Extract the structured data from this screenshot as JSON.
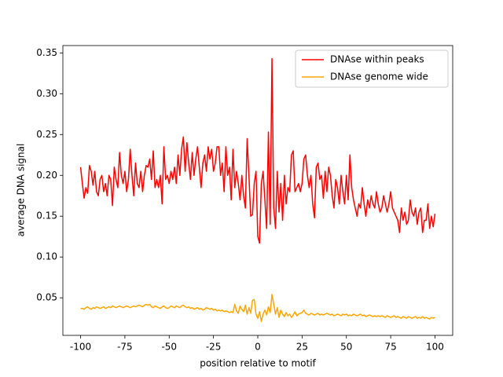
{
  "chart_data": {
    "type": "line",
    "xlabel": "position relative to motif",
    "ylabel": "average DNA signal",
    "xlim": [
      -110,
      110
    ],
    "xticks": [
      -100,
      -75,
      -50,
      -25,
      0,
      25,
      50,
      75,
      100
    ],
    "ylim": [
      0.004,
      0.359
    ],
    "yticks": [
      0.05,
      {
        "value": 0.1,
        "label": "0.10"
      },
      0.15,
      {
        "value": 0.2,
        "label": "0.20"
      },
      0.25,
      {
        "value": 0.3,
        "label": "0.30"
      },
      0.35
    ],
    "legend": "upper right",
    "x": [
      -100,
      -99,
      -98,
      -97,
      -96,
      -95,
      -94,
      -93,
      -92,
      -91,
      -90,
      -89,
      -88,
      -87,
      -86,
      -85,
      -84,
      -83,
      -82,
      -81,
      -80,
      -79,
      -78,
      -77,
      -76,
      -75,
      -74,
      -73,
      -72,
      -71,
      -70,
      -69,
      -68,
      -67,
      -66,
      -65,
      -64,
      -63,
      -62,
      -61,
      -60,
      -59,
      -58,
      -57,
      -56,
      -55,
      -54,
      -53,
      -52,
      -51,
      -50,
      -49,
      -48,
      -47,
      -46,
      -45,
      -44,
      -43,
      -42,
      -41,
      -40,
      -39,
      -38,
      -37,
      -36,
      -35,
      -34,
      -33,
      -32,
      -31,
      -30,
      -29,
      -28,
      -27,
      -26,
      -25,
      -24,
      -23,
      -22,
      -21,
      -20,
      -19,
      -18,
      -17,
      -16,
      -15,
      -14,
      -13,
      -12,
      -11,
      -10,
      -9,
      -8,
      -7,
      -6,
      -5,
      -4,
      -3,
      -2,
      -1,
      0,
      1,
      2,
      3,
      4,
      5,
      6,
      7,
      8,
      9,
      10,
      11,
      12,
      13,
      14,
      15,
      16,
      17,
      18,
      19,
      20,
      21,
      22,
      23,
      24,
      25,
      26,
      27,
      28,
      29,
      30,
      31,
      32,
      33,
      34,
      35,
      36,
      37,
      38,
      39,
      40,
      41,
      42,
      43,
      44,
      45,
      46,
      47,
      48,
      49,
      50,
      51,
      52,
      53,
      54,
      55,
      56,
      57,
      58,
      59,
      60,
      61,
      62,
      63,
      64,
      65,
      66,
      67,
      68,
      69,
      70,
      71,
      72,
      73,
      74,
      75,
      76,
      77,
      78,
      79,
      80,
      81,
      82,
      83,
      84,
      85,
      86,
      87,
      88,
      89,
      90,
      91,
      92,
      93,
      94,
      95,
      96,
      97,
      98,
      99,
      100
    ],
    "series": [
      {
        "name": "DNAse within peaks",
        "color": "#ff0000",
        "values": [
          0.21,
          0.19,
          0.172,
          0.185,
          0.178,
          0.212,
          0.205,
          0.188,
          0.205,
          0.18,
          0.175,
          0.195,
          0.2,
          0.18,
          0.19,
          0.175,
          0.2,
          0.195,
          0.163,
          0.21,
          0.195,
          0.185,
          0.228,
          0.2,
          0.19,
          0.205,
          0.18,
          0.195,
          0.232,
          0.2,
          0.175,
          0.215,
          0.19,
          0.185,
          0.205,
          0.18,
          0.2,
          0.212,
          0.21,
          0.22,
          0.195,
          0.23,
          0.185,
          0.195,
          0.185,
          0.2,
          0.165,
          0.235,
          0.195,
          0.2,
          0.19,
          0.205,
          0.195,
          0.21,
          0.19,
          0.225,
          0.2,
          0.232,
          0.247,
          0.205,
          0.24,
          0.215,
          0.195,
          0.228,
          0.2,
          0.22,
          0.235,
          0.21,
          0.185,
          0.215,
          0.225,
          0.205,
          0.235,
          0.22,
          0.232,
          0.205,
          0.215,
          0.235,
          0.235,
          0.2,
          0.215,
          0.18,
          0.235,
          0.2,
          0.21,
          0.17,
          0.232,
          0.185,
          0.205,
          0.19,
          0.17,
          0.2,
          0.175,
          0.16,
          0.245,
          0.2,
          0.15,
          0.152,
          0.19,
          0.205,
          0.125,
          0.117,
          0.19,
          0.205,
          0.17,
          0.135,
          0.253,
          0.14,
          0.343,
          0.16,
          0.135,
          0.205,
          0.155,
          0.19,
          0.145,
          0.2,
          0.165,
          0.185,
          0.18,
          0.225,
          0.23,
          0.18,
          0.185,
          0.19,
          0.18,
          0.19,
          0.22,
          0.225,
          0.2,
          0.185,
          0.2,
          0.165,
          0.148,
          0.21,
          0.215,
          0.195,
          0.2,
          0.172,
          0.205,
          0.18,
          0.21,
          0.2,
          0.175,
          0.16,
          0.195,
          0.185,
          0.165,
          0.2,
          0.18,
          0.165,
          0.2,
          0.17,
          0.225,
          0.185,
          0.17,
          0.16,
          0.15,
          0.165,
          0.16,
          0.185,
          0.165,
          0.15,
          0.17,
          0.16,
          0.175,
          0.165,
          0.16,
          0.18,
          0.165,
          0.155,
          0.16,
          0.175,
          0.165,
          0.155,
          0.165,
          0.18,
          0.16,
          0.155,
          0.15,
          0.145,
          0.13,
          0.16,
          0.145,
          0.155,
          0.14,
          0.145,
          0.17,
          0.155,
          0.15,
          0.16,
          0.14,
          0.155,
          0.16,
          0.13,
          0.145,
          0.145,
          0.165,
          0.135,
          0.15,
          0.137,
          0.153
        ]
      },
      {
        "name": "DNAse genome wide",
        "color": "#ffa500",
        "values": [
          0.037,
          0.037,
          0.036,
          0.038,
          0.039,
          0.037,
          0.036,
          0.038,
          0.037,
          0.039,
          0.038,
          0.037,
          0.038,
          0.039,
          0.037,
          0.038,
          0.039,
          0.038,
          0.04,
          0.039,
          0.038,
          0.039,
          0.04,
          0.039,
          0.038,
          0.039,
          0.04,
          0.039,
          0.038,
          0.039,
          0.04,
          0.039,
          0.04,
          0.041,
          0.04,
          0.039,
          0.041,
          0.042,
          0.041,
          0.042,
          0.039,
          0.038,
          0.04,
          0.039,
          0.038,
          0.037,
          0.039,
          0.04,
          0.038,
          0.037,
          0.038,
          0.04,
          0.039,
          0.038,
          0.04,
          0.039,
          0.038,
          0.04,
          0.041,
          0.039,
          0.038,
          0.039,
          0.037,
          0.038,
          0.036,
          0.037,
          0.038,
          0.036,
          0.037,
          0.035,
          0.036,
          0.038,
          0.037,
          0.036,
          0.037,
          0.035,
          0.036,
          0.034,
          0.035,
          0.034,
          0.035,
          0.033,
          0.034,
          0.033,
          0.032,
          0.033,
          0.032,
          0.042,
          0.034,
          0.031,
          0.04,
          0.036,
          0.033,
          0.041,
          0.03,
          0.038,
          0.031,
          0.047,
          0.048,
          0.03,
          0.025,
          0.033,
          0.021,
          0.03,
          0.035,
          0.029,
          0.039,
          0.032,
          0.054,
          0.042,
          0.03,
          0.038,
          0.026,
          0.035,
          0.03,
          0.027,
          0.032,
          0.028,
          0.03,
          0.026,
          0.029,
          0.033,
          0.028,
          0.03,
          0.031,
          0.032,
          0.035,
          0.031,
          0.03,
          0.029,
          0.031,
          0.03,
          0.029,
          0.03,
          0.031,
          0.029,
          0.03,
          0.029,
          0.03,
          0.031,
          0.03,
          0.029,
          0.03,
          0.028,
          0.029,
          0.03,
          0.029,
          0.028,
          0.03,
          0.029,
          0.03,
          0.028,
          0.029,
          0.028,
          0.03,
          0.029,
          0.028,
          0.029,
          0.03,
          0.028,
          0.029,
          0.027,
          0.028,
          0.029,
          0.028,
          0.027,
          0.028,
          0.027,
          0.028,
          0.027,
          0.028,
          0.027,
          0.026,
          0.028,
          0.027,
          0.026,
          0.027,
          0.028,
          0.026,
          0.027,
          0.026,
          0.025,
          0.027,
          0.026,
          0.025,
          0.027,
          0.026,
          0.025,
          0.026,
          0.027,
          0.025,
          0.026,
          0.025,
          0.027,
          0.025,
          0.026,
          0.025,
          0.024,
          0.026,
          0.025,
          0.026
        ]
      }
    ]
  }
}
